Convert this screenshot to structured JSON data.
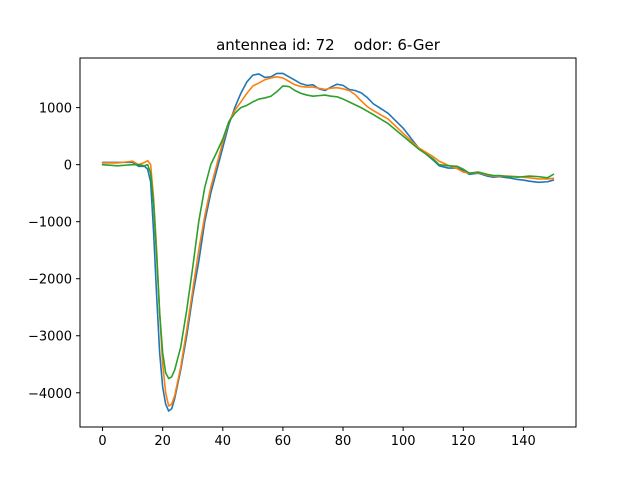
{
  "chart_data": {
    "type": "line",
    "title": "antennea id: 72    odor: 6-Ger",
    "xlabel": "",
    "ylabel": "",
    "xlim": [
      -7.5,
      157.5
    ],
    "ylim": [
      -4600,
      1870
    ],
    "xticks": [
      0,
      20,
      40,
      60,
      80,
      100,
      120,
      140
    ],
    "yticks": [
      -4000,
      -3000,
      -2000,
      -1000,
      0,
      1000
    ],
    "ytick_labels": [
      "−4000",
      "−3000",
      "−2000",
      "−1000",
      "0",
      "1000"
    ],
    "grid": false,
    "x": [
      0,
      5,
      10,
      12,
      14,
      15,
      16,
      17,
      18,
      19,
      20,
      21,
      22,
      23,
      24,
      26,
      28,
      30,
      32,
      34,
      36,
      38,
      40,
      42,
      44,
      46,
      48,
      50,
      52,
      54,
      56,
      58,
      60,
      62,
      64,
      66,
      68,
      70,
      72,
      74,
      76,
      78,
      80,
      82,
      84,
      86,
      88,
      90,
      95,
      100,
      105,
      110,
      112,
      115,
      118,
      120,
      122,
      125,
      128,
      130,
      132,
      135,
      138,
      140,
      142,
      145,
      148,
      150
    ],
    "series": [
      {
        "color": "#1f77b4",
        "values": [
          40,
          40,
          40,
          -30,
          -30,
          -80,
          -300,
          -1200,
          -2300,
          -3300,
          -3900,
          -4200,
          -4320,
          -4280,
          -4100,
          -3600,
          -3000,
          -2300,
          -1700,
          -1000,
          -500,
          -100,
          300,
          700,
          1000,
          1250,
          1450,
          1570,
          1590,
          1530,
          1540,
          1600,
          1600,
          1540,
          1480,
          1420,
          1390,
          1400,
          1330,
          1300,
          1360,
          1410,
          1390,
          1320,
          1300,
          1260,
          1180,
          1070,
          900,
          640,
          300,
          80,
          -20,
          -60,
          -60,
          -100,
          -170,
          -150,
          -200,
          -220,
          -210,
          -230,
          -260,
          -270,
          -290,
          -310,
          -300,
          -270
        ]
      },
      {
        "color": "#ff7f0e",
        "values": [
          30,
          30,
          60,
          0,
          40,
          70,
          0,
          -600,
          -1500,
          -2600,
          -3500,
          -4000,
          -4230,
          -4200,
          -4050,
          -3550,
          -2900,
          -2200,
          -1500,
          -900,
          -400,
          0,
          400,
          750,
          950,
          1100,
          1250,
          1380,
          1430,
          1490,
          1520,
          1540,
          1520,
          1460,
          1400,
          1370,
          1360,
          1360,
          1340,
          1320,
          1340,
          1350,
          1330,
          1300,
          1230,
          1120,
          1020,
          950,
          800,
          550,
          300,
          140,
          60,
          -10,
          -70,
          -130,
          -150,
          -140,
          -180,
          -200,
          -200,
          -200,
          -210,
          -220,
          -230,
          -250,
          -250,
          -240
        ]
      },
      {
        "color": "#2ca02c",
        "values": [
          0,
          -20,
          0,
          0,
          -20,
          0,
          -150,
          -700,
          -1600,
          -2600,
          -3300,
          -3650,
          -3750,
          -3720,
          -3600,
          -3200,
          -2550,
          -1800,
          -1000,
          -400,
          0,
          220,
          450,
          750,
          900,
          1000,
          1040,
          1100,
          1150,
          1170,
          1200,
          1280,
          1380,
          1370,
          1300,
          1250,
          1220,
          1200,
          1210,
          1220,
          1200,
          1190,
          1150,
          1100,
          1050,
          1000,
          940,
          880,
          720,
          500,
          280,
          100,
          0,
          -20,
          -30,
          -80,
          -150,
          -130,
          -170,
          -190,
          -190,
          -210,
          -220,
          -210,
          -200,
          -210,
          -230,
          -170
        ]
      }
    ]
  }
}
